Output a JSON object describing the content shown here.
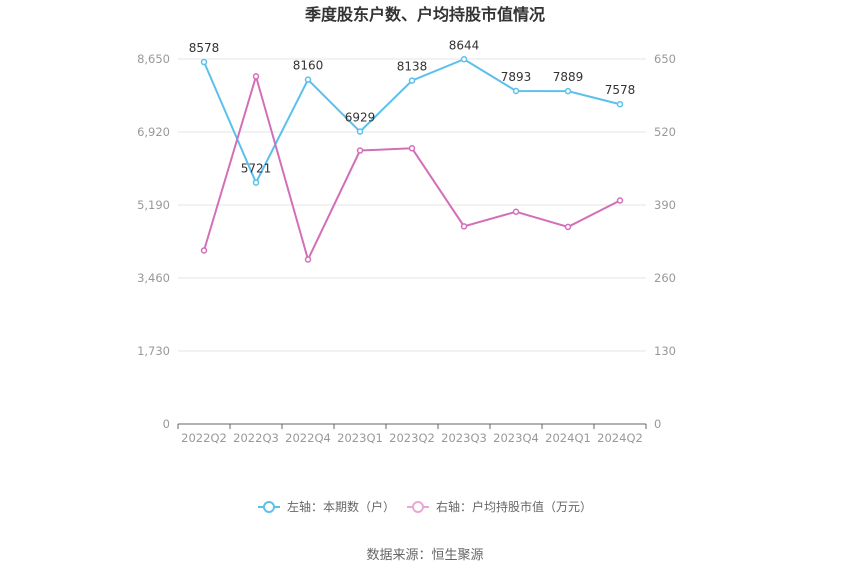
{
  "chart_data": {
    "type": "line",
    "title": "季度股东户数、户均持股市值情况",
    "categories": [
      "2022Q2",
      "2022Q3",
      "2022Q4",
      "2023Q1",
      "2023Q2",
      "2023Q3",
      "2023Q4",
      "2024Q1",
      "2024Q2"
    ],
    "y_left": {
      "ticks": [
        "0",
        "1,730",
        "3,460",
        "5,190",
        "6,920",
        "8,650"
      ],
      "range": [
        0,
        8650
      ]
    },
    "y_right": {
      "ticks": [
        "0",
        "130",
        "260",
        "390",
        "520",
        "650"
      ],
      "range": [
        0,
        650
      ]
    },
    "series": [
      {
        "name": "左轴：本期数（户）",
        "axis": "left",
        "color": "#5bc0eb",
        "values": [
          8578,
          5721,
          8160,
          6929,
          8138,
          8644,
          7893,
          7889,
          7578
        ],
        "labels": [
          "8578",
          "5721",
          "8160",
          "6929",
          "8138",
          "8644",
          "7893",
          "7889",
          "7578"
        ]
      },
      {
        "name": "右轴：户均持股市值（万元）",
        "axis": "right",
        "color": "#d36fb8",
        "values": [
          309,
          619,
          293,
          487,
          491,
          352,
          378,
          351,
          398
        ]
      }
    ],
    "legend_position": "bottom-center",
    "grid": true
  },
  "source": "数据来源：恒生聚源"
}
